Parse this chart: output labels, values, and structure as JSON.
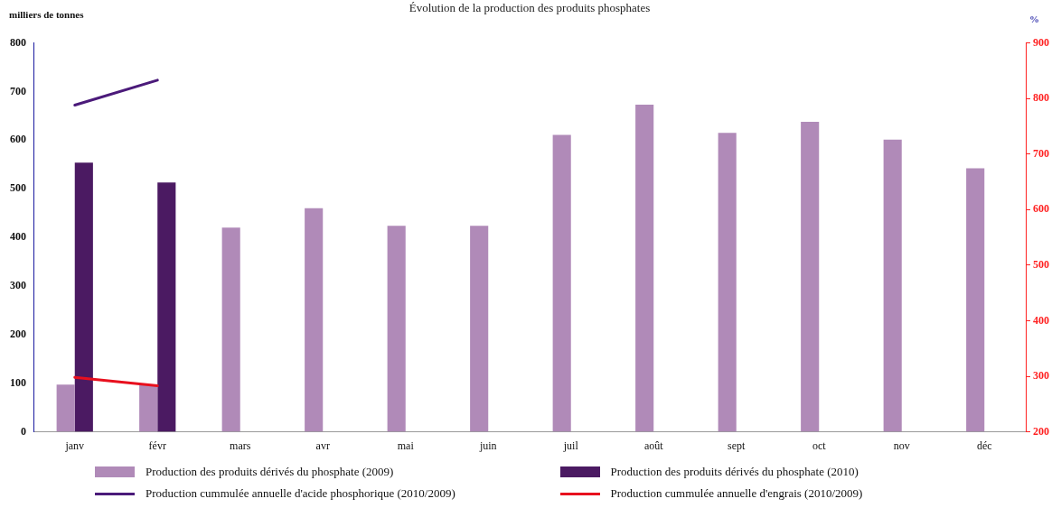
{
  "chart_data": {
    "type": "bar",
    "title": "Évolution de la production des produits phosphates",
    "ylabel": "milliers de tonnes",
    "y2label": "%",
    "categories": [
      "janv",
      "févr",
      "mars",
      "avr",
      "mai",
      "juin",
      "juil",
      "août",
      "sept",
      "oct",
      "nov",
      "déc"
    ],
    "series": [
      {
        "name": "Production des produits dérivés du phosphate (2009)",
        "color": "#b08ab8",
        "values": [
          97,
          96,
          420,
          460,
          424,
          424,
          611,
          673,
          615,
          638,
          601,
          542
        ]
      },
      {
        "name": "Production des produits dérivés du phosphate (2010)",
        "color": "#4b1a62",
        "values": [
          554,
          513,
          null,
          null,
          null,
          null,
          null,
          null,
          null,
          null,
          null,
          null
        ]
      },
      {
        "name": "Production cummulée annuelle d'acide phosphorique (2010/2009)",
        "type": "line",
        "axis": "y2",
        "color": "#4b1a7a",
        "values": [
          788,
          833,
          null,
          null,
          null,
          null,
          null,
          null,
          null,
          null,
          null,
          null
        ]
      },
      {
        "name": "Production cummulée annuelle d'engrais (2010/2009)",
        "type": "line",
        "axis": "y2",
        "color": "#e8101e",
        "values": [
          298,
          283,
          null,
          null,
          null,
          null,
          null,
          null,
          null,
          null,
          null,
          null
        ]
      }
    ],
    "ylim": [
      0,
      800
    ],
    "yticks": [
      0,
      100,
      200,
      300,
      400,
      500,
      600,
      700,
      800
    ],
    "y2lim": [
      200,
      900
    ],
    "y2ticks": [
      200,
      300,
      400,
      500,
      600,
      700,
      800,
      900
    ],
    "grid": false,
    "legend": "bottom",
    "marker": "none",
    "line_style": "solid"
  }
}
